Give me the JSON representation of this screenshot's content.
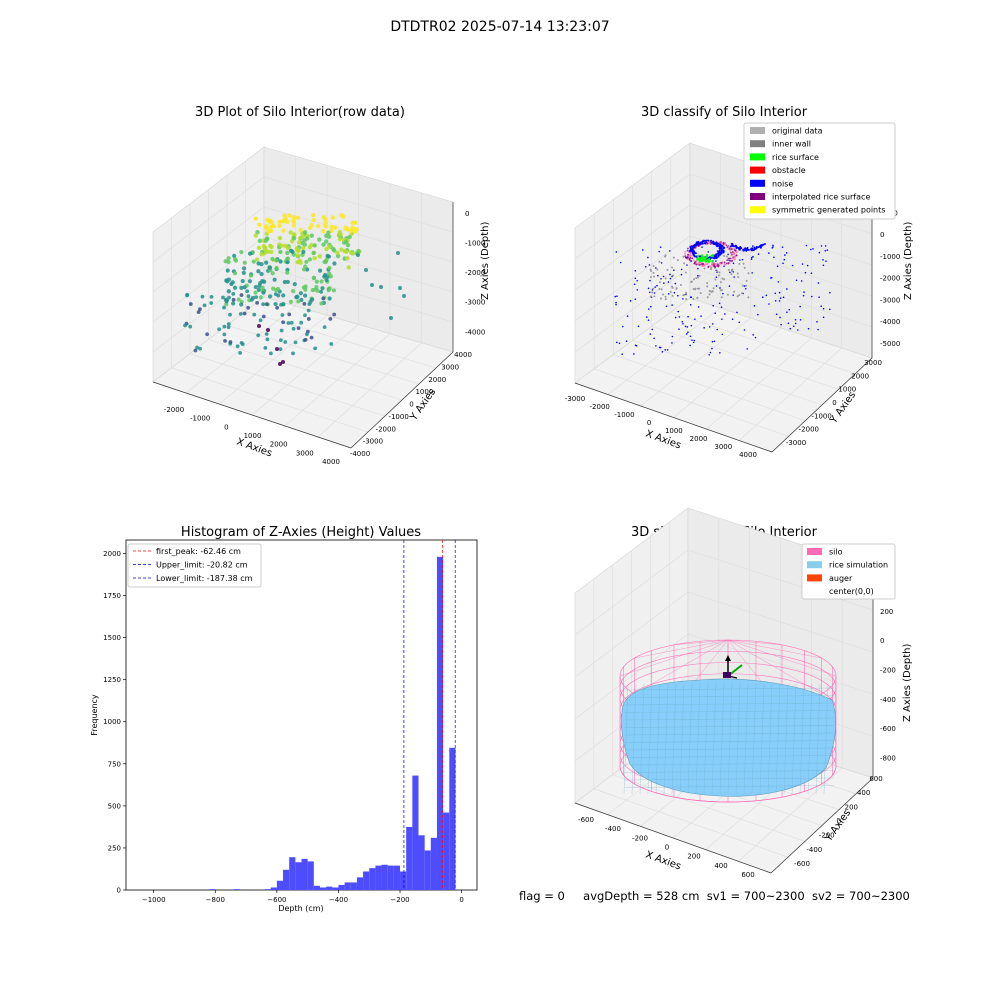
{
  "suptitle": "DTDTR02 2025-07-14 13:23:07",
  "footer": {
    "flag": "flag = 0",
    "avgDepth": "avgDepth = 528 cm",
    "sv1": "sv1 = 700~2300",
    "sv2": "sv2 = 700~2300"
  },
  "colors": {
    "hist_bar": "#4d4dff",
    "first_peak_line": "#ff0000",
    "limit_line": "#0000cc",
    "silo_wire": "#ff69b4",
    "rice_surface": "#87cefa",
    "auger": "#ff4500"
  },
  "chart_data": [
    {
      "type": "scatter",
      "panel": "raw",
      "title": "3D Plot of Silo Interior(row data)",
      "xlabel": "X Axies",
      "ylabel": "Y Axies",
      "zlabel": "Z Axies (Depth)",
      "x_ticks": [
        "-2000",
        "-1000",
        "0",
        "1000",
        "2000",
        "3000",
        "4000"
      ],
      "y_ticks": [
        "4000",
        "3000",
        "2000",
        "1000",
        "0",
        "-1000",
        "-2000",
        "-3000",
        "-4000"
      ],
      "z_ticks": [
        "0",
        "-1000",
        "-2000",
        "-3000",
        "-4000"
      ],
      "colormap": [
        "#440154",
        "#3b528b",
        "#21918c",
        "#5ec962",
        "#fde725"
      ],
      "grid": true
    },
    {
      "type": "scatter",
      "panel": "classify",
      "title": "3D classify of Silo Interior",
      "xlabel": "X Axies",
      "ylabel": "Y Axies",
      "zlabel": "Z Axies (Depth)",
      "x_ticks": [
        "-3000",
        "-2000",
        "-1000",
        "0",
        "1000",
        "2000",
        "3000",
        "4000"
      ],
      "y_ticks": [
        "3000",
        "2000",
        "1000",
        "0",
        "-1000",
        "-2000",
        "-3000"
      ],
      "z_ticks": [
        "1000",
        "0",
        "-1000",
        "-2000",
        "-3000",
        "-4000",
        "-5000"
      ],
      "legend_position": "top-right",
      "legend": [
        {
          "label": "original data",
          "color": "#b0b0b0"
        },
        {
          "label": "inner wall",
          "color": "#808080"
        },
        {
          "label": "rice surface",
          "color": "#00ff00"
        },
        {
          "label": "obstacle",
          "color": "#ff0000"
        },
        {
          "label": "noise",
          "color": "#0000ff"
        },
        {
          "label": "interpolated rice surface",
          "color": "#800080"
        },
        {
          "label": "symmetric generated points",
          "color": "#ffff00"
        }
      ],
      "grid": true
    },
    {
      "type": "bar",
      "panel": "histogram",
      "title": "Histogram of Z-Axies (Height) Values",
      "xlabel": "Depth (cm)",
      "ylabel": "Frequency",
      "xlim": [
        -1090,
        50
      ],
      "ylim": [
        0,
        2080
      ],
      "x_ticks": [
        -1000,
        -800,
        -600,
        -400,
        -200,
        0
      ],
      "y_ticks": [
        0,
        250,
        500,
        750,
        1000,
        1250,
        1500,
        1750,
        2000
      ],
      "bin_width": 20,
      "bins": [
        {
          "x": -820,
          "y": 5
        },
        {
          "x": -740,
          "y": 5
        },
        {
          "x": -640,
          "y": 5
        },
        {
          "x": -620,
          "y": 15
        },
        {
          "x": -600,
          "y": 55
        },
        {
          "x": -580,
          "y": 120
        },
        {
          "x": -560,
          "y": 195
        },
        {
          "x": -540,
          "y": 165
        },
        {
          "x": -520,
          "y": 185
        },
        {
          "x": -500,
          "y": 170
        },
        {
          "x": -480,
          "y": 25
        },
        {
          "x": -460,
          "y": 15
        },
        {
          "x": -440,
          "y": 20
        },
        {
          "x": -420,
          "y": 15
        },
        {
          "x": -400,
          "y": 30
        },
        {
          "x": -380,
          "y": 45
        },
        {
          "x": -360,
          "y": 45
        },
        {
          "x": -340,
          "y": 75
        },
        {
          "x": -320,
          "y": 110
        },
        {
          "x": -300,
          "y": 130
        },
        {
          "x": -280,
          "y": 145
        },
        {
          "x": -260,
          "y": 150
        },
        {
          "x": -240,
          "y": 145
        },
        {
          "x": -220,
          "y": 145
        },
        {
          "x": -200,
          "y": 110
        },
        {
          "x": -180,
          "y": 375
        },
        {
          "x": -160,
          "y": 680
        },
        {
          "x": -140,
          "y": 325
        },
        {
          "x": -120,
          "y": 235
        },
        {
          "x": -100,
          "y": 310
        },
        {
          "x": -80,
          "y": 1980
        },
        {
          "x": -60,
          "y": 460
        },
        {
          "x": -40,
          "y": 845
        }
      ],
      "legend_position": "upper-left",
      "vlines": [
        {
          "label": "first_peak: -62.46 cm",
          "x": -62.46,
          "color": "#ff0000"
        },
        {
          "label": "Upper_limit: -20.82 cm",
          "x": -20.82,
          "color": "#0000cc"
        },
        {
          "label": "Lower_limit: -187.38 cm",
          "x": -187.38,
          "color": "#0000cc"
        }
      ]
    },
    {
      "type": "area",
      "panel": "simulation",
      "title": "3D simulation of Silo Interior",
      "xlabel": "X Axies",
      "ylabel": "Y Axies",
      "zlabel": "Z Axies (Depth)",
      "x_ticks": [
        "-600",
        "-400",
        "-200",
        "0",
        "200",
        "400",
        "600"
      ],
      "y_ticks": [
        "600",
        "400",
        "200",
        "0",
        "-200",
        "-400",
        "-600"
      ],
      "z_ticks": [
        "200",
        "0",
        "-200",
        "-400",
        "-600",
        "-800"
      ],
      "legend_position": "top-right",
      "legend": [
        {
          "label": "silo",
          "color": "#ff69b4"
        },
        {
          "label": "rice simulation",
          "color": "#87ceeb"
        },
        {
          "label": "auger",
          "color": "#ff4500"
        },
        {
          "label": "center(0,0)",
          "color": ""
        }
      ],
      "grid": true
    }
  ]
}
